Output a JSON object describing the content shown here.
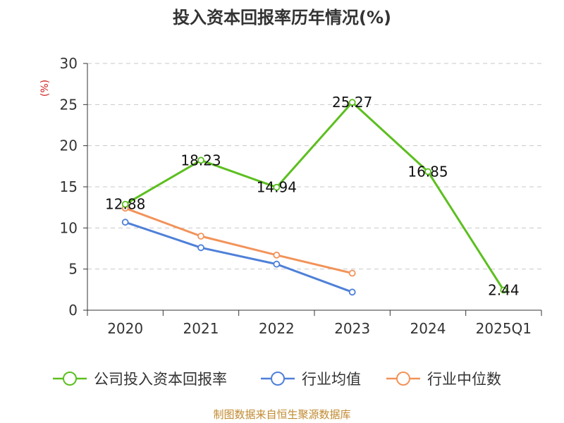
{
  "chart_data": {
    "type": "line",
    "title": "投入资本回报率历年情况(%)",
    "ylabel": "(%)",
    "xlabel": "",
    "categories": [
      "2020",
      "2021",
      "2022",
      "2023",
      "2024",
      "2025Q1"
    ],
    "ylim": [
      0,
      30
    ],
    "yticks": [
      0,
      5,
      10,
      15,
      20,
      25,
      30
    ],
    "grid": true,
    "legend_position": "bottom",
    "series": [
      {
        "name": "公司投入资本回报率",
        "color": "#5cbf1f",
        "values": [
          12.88,
          18.23,
          14.94,
          25.27,
          16.85,
          2.44
        ],
        "labels": [
          "12.88",
          "18.23",
          "14.94",
          "25.27",
          "16.85",
          "2.44"
        ]
      },
      {
        "name": "行业均值",
        "color": "#4f80d8",
        "values": [
          10.7,
          7.6,
          5.6,
          2.2,
          null,
          null
        ]
      },
      {
        "name": "行业中位数",
        "color": "#f2935a",
        "values": [
          12.4,
          9.0,
          6.7,
          4.5,
          null,
          null
        ]
      }
    ],
    "source": "制图数据来自恒生聚源数据库"
  }
}
